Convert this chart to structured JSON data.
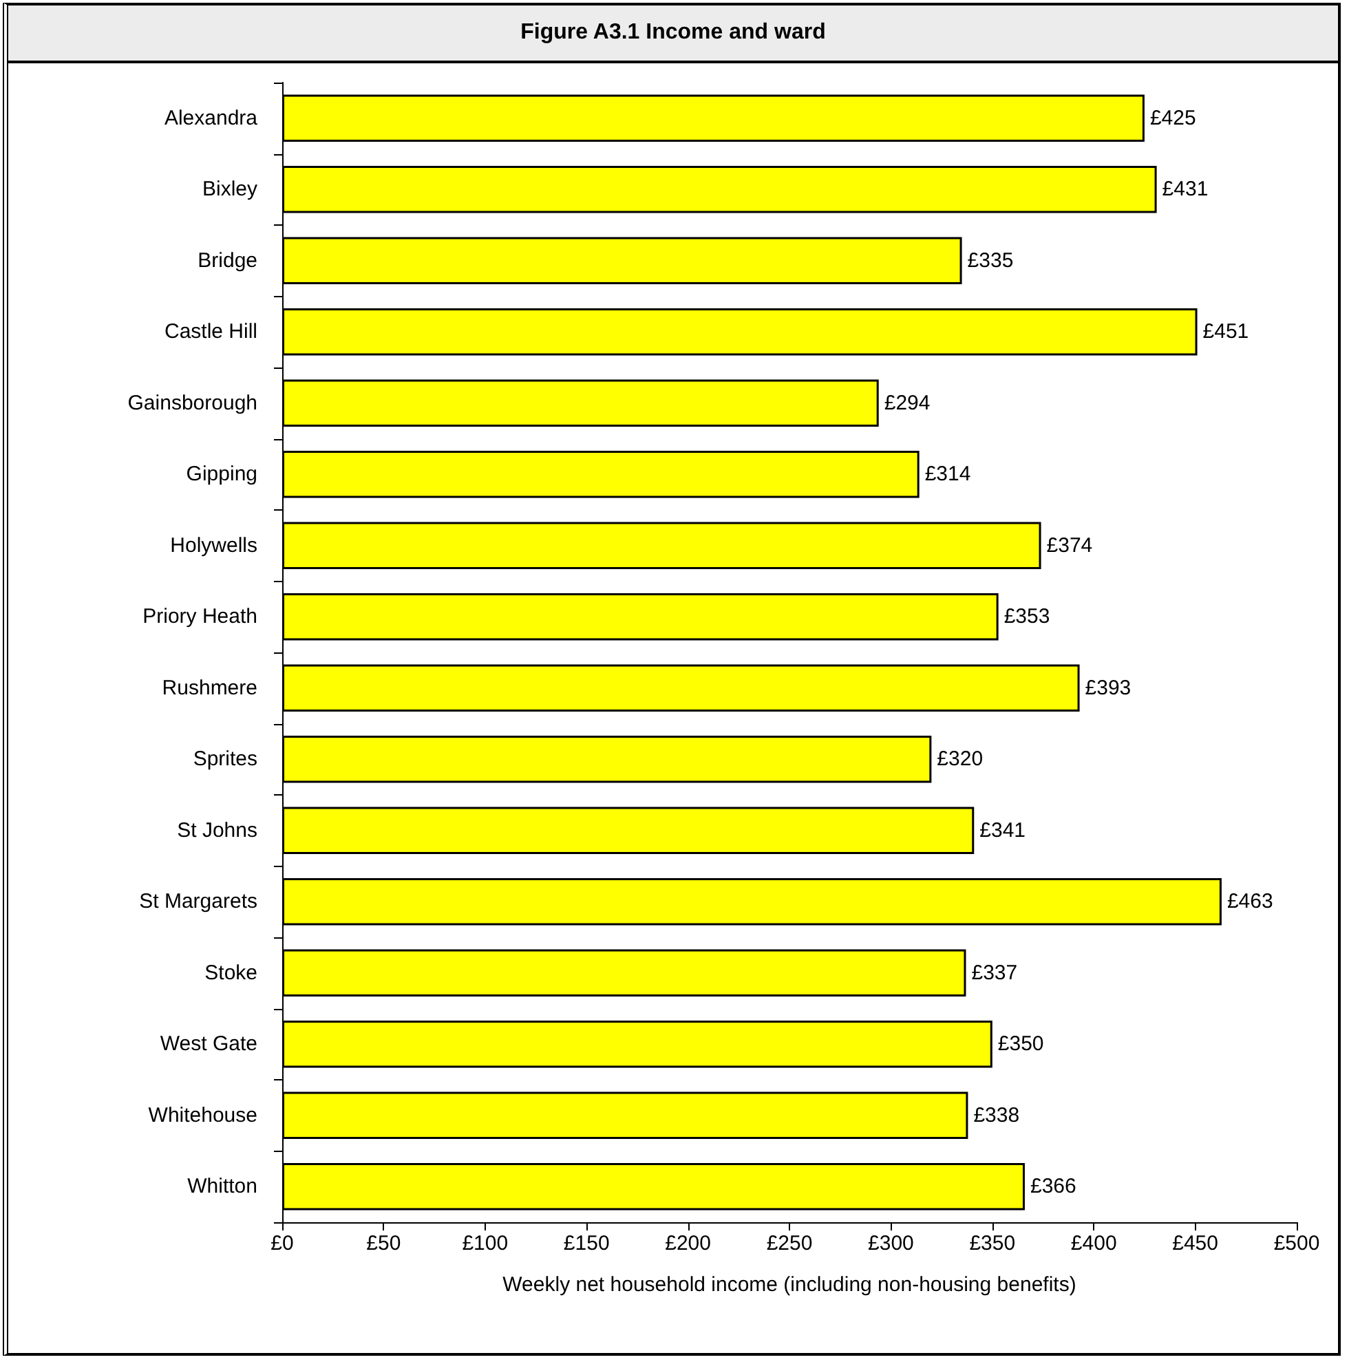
{
  "chart_data": {
    "type": "bar",
    "orientation": "horizontal",
    "title": "Figure A3.1 Income and ward",
    "xlabel": "Weekly net household income (including non-housing benefits)",
    "categories": [
      "Alexandra",
      "Bixley",
      "Bridge",
      "Castle Hill",
      "Gainsborough",
      "Gipping",
      "Holywells",
      "Priory Heath",
      "Rushmere",
      "Sprites",
      "St Johns",
      "St Margarets",
      "Stoke",
      "West Gate",
      "Whitehouse",
      "Whitton"
    ],
    "values": [
      425,
      431,
      335,
      451,
      294,
      314,
      374,
      353,
      393,
      320,
      341,
      463,
      337,
      350,
      338,
      366
    ],
    "value_labels": [
      "£425",
      "£431",
      "£335",
      "£451",
      "£294",
      "£314",
      "£374",
      "£353",
      "£393",
      "£320",
      "£341",
      "£463",
      "£337",
      "£350",
      "£338",
      "£366"
    ],
    "color": "#ffff00",
    "xlim": [
      0,
      500
    ],
    "xticks": [
      {
        "value": 0,
        "label": "£0"
      },
      {
        "value": 50,
        "label": "£50"
      },
      {
        "value": 100,
        "label": "£100"
      },
      {
        "value": 150,
        "label": "£150"
      },
      {
        "value": 200,
        "label": "£200"
      },
      {
        "value": 250,
        "label": "£250"
      },
      {
        "value": 300,
        "label": "£300"
      },
      {
        "value": 350,
        "label": "£350"
      },
      {
        "value": 400,
        "label": "£400"
      },
      {
        "value": 450,
        "label": "£450"
      },
      {
        "value": 500,
        "label": "£500"
      }
    ],
    "grid": false
  }
}
